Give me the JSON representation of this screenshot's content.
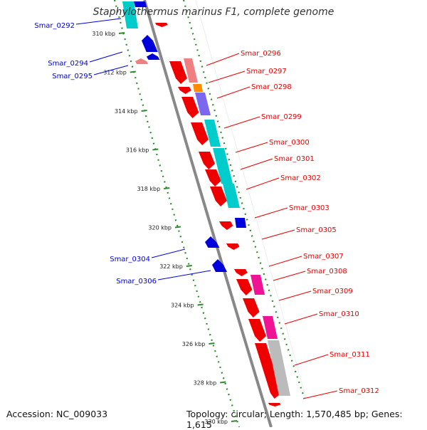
{
  "title": "Staphylothermus marinus F1, complete genome",
  "footer": {
    "accession": "Accession: NC_009033",
    "summary": "Topology: circular; Length: 1,570,485 bp; Genes: 1,615"
  },
  "colors": {
    "forward": "#ee0000",
    "reverse": "#0000dd",
    "backbone": "#888888",
    "tick": "#2e8b2e",
    "cog_cyan": "#00cccc",
    "cog_salmon": "#f08080",
    "cog_orange": "#ff8c00",
    "cog_purple": "#7b68ee",
    "cog_magenta": "#ee1493",
    "cog_gray": "#bbbbbb"
  },
  "ticks": [
    "310 kbp",
    "312 kbp",
    "314 kbp",
    "316 kbp",
    "318 kbp",
    "320 kbp",
    "322 kbp",
    "324 kbp",
    "326 kbp",
    "328 kbp",
    "330 kbp"
  ],
  "forward_labels": [
    "Smar_0296",
    "Smar_0297",
    "Smar_0298",
    "Smar_0299",
    "Smar_0300",
    "Smar_0301",
    "Smar_0302",
    "Smar_0303",
    "Smar_0305",
    "Smar_0307",
    "Smar_0308",
    "Smar_0309",
    "Smar_0310",
    "Smar_0311",
    "Smar_0312"
  ],
  "reverse_labels": [
    "Smar_0292",
    "Smar_0294",
    "Smar_0295",
    "Smar_0304",
    "Smar_0306"
  ]
}
